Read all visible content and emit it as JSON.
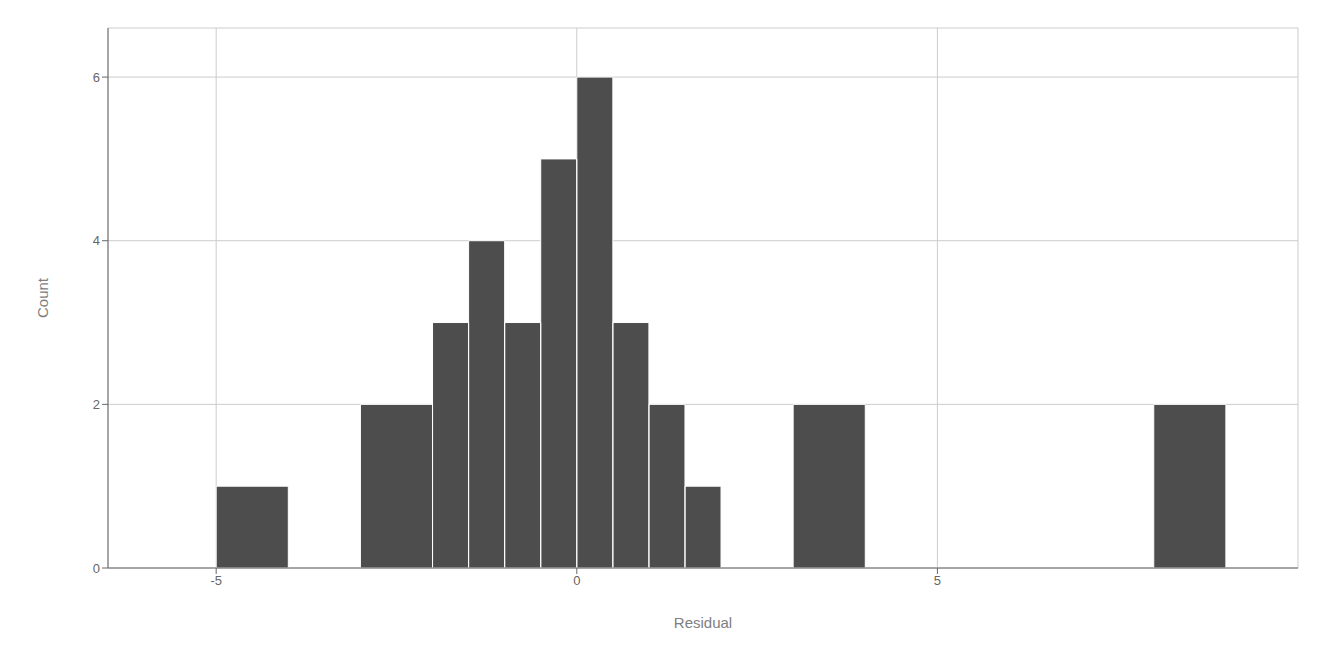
{
  "chart_data": {
    "type": "histogram",
    "bins": [
      -5,
      -4,
      -3,
      -2,
      -1.5,
      -1,
      -0.5,
      0,
      0.5,
      1,
      1.5,
      2,
      3,
      4,
      5,
      6,
      7,
      8,
      9
    ],
    "values": [
      1,
      0,
      2,
      3,
      4,
      3,
      5,
      6,
      3,
      2,
      1,
      0,
      2,
      0,
      0,
      0,
      0,
      2
    ],
    "color": "#4d4d4d",
    "xlabel": "Residual",
    "ylabel": "Count",
    "xlim": [
      -6.5,
      10
    ],
    "ylim": [
      0,
      6.6
    ],
    "xticks": [
      -5,
      0,
      5
    ],
    "yticks": [
      0,
      2,
      4,
      6
    ],
    "grid": true
  }
}
